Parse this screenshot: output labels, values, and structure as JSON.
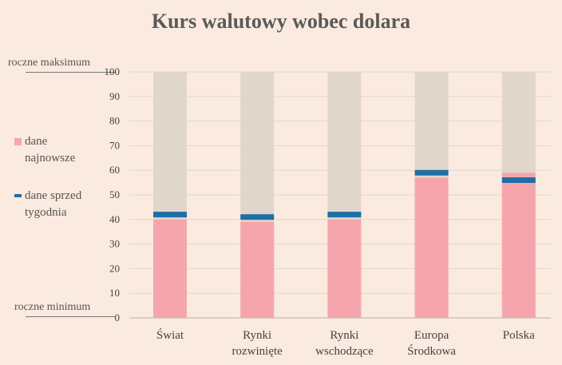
{
  "colors": {
    "background": "#fbeadf",
    "range_bar": "#e1d6cc",
    "latest": "#f5a6ad",
    "week_ago": "#1f6ea6",
    "grid": "#e0d6cf"
  },
  "labels": {
    "max": "roczne maksimum",
    "min": "roczne minimum"
  },
  "legend": [
    {
      "id": "latest",
      "label": "dane najnowsze",
      "line1": "dane",
      "line2": "najnowsze",
      "icon": "square"
    },
    {
      "id": "week_ago",
      "label": "dane sprzed tygodnia",
      "line1": "dane sprzed",
      "line2": "tygodnia",
      "icon": "dash"
    }
  ],
  "chart_data": {
    "type": "bar",
    "title": "Kurs walutowy wobec dolara",
    "categories": [
      "Świat",
      "Rynki rozwinięte",
      "Rynki wschodzące",
      "Europa Środkowa",
      "Polska"
    ],
    "category_lines": [
      [
        "Świat"
      ],
      [
        "Rynki",
        "rozwinięte"
      ],
      [
        "Rynki",
        "wschodzące"
      ],
      [
        "Europa",
        "Środkowa"
      ],
      [
        "Polska"
      ]
    ],
    "series": [
      {
        "name": "dane najnowsze",
        "values": [
          40,
          39,
          40,
          57,
          59
        ]
      },
      {
        "name": "dane sprzed tygodnia",
        "values": [
          42,
          41,
          42,
          59,
          56
        ]
      }
    ],
    "range_max": 100,
    "ylim": [
      0,
      100
    ],
    "yticks": [
      0,
      10,
      20,
      30,
      40,
      50,
      60,
      70,
      80,
      90,
      100
    ],
    "grid": true,
    "legend_position": "left"
  }
}
